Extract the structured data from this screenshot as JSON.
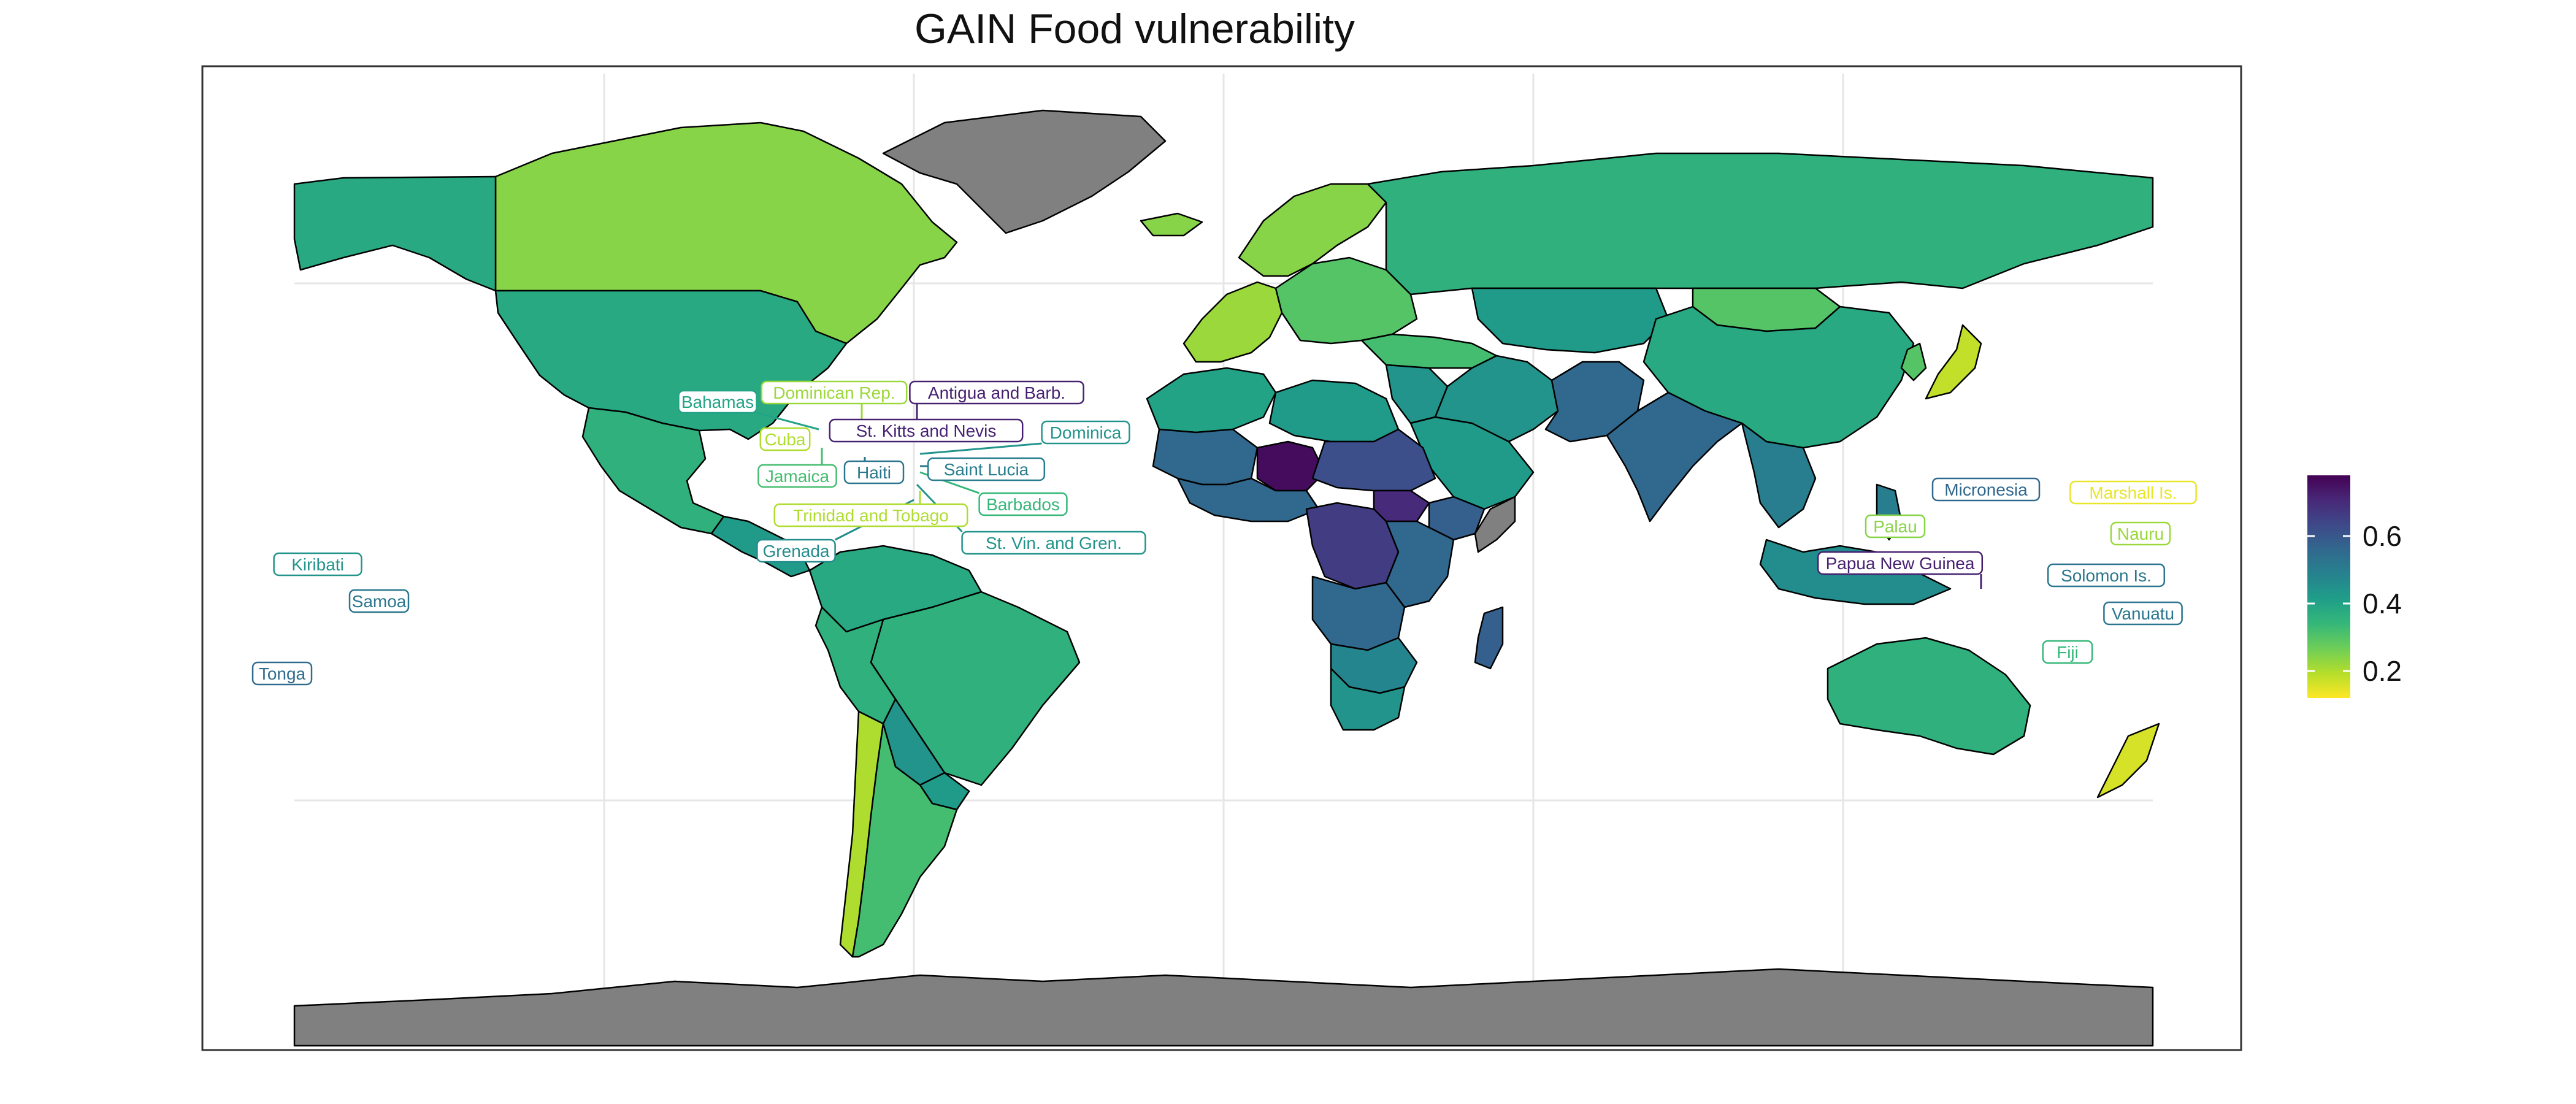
{
  "title": "GAIN Food vulnerability",
  "colors": {
    "background": "#ffffff",
    "ocean": "#ffffff",
    "frame": "#333333",
    "grid": "#e6e6e6",
    "no_data": "#808080",
    "border": "#000000"
  },
  "chart_data": {
    "type": "choropleth",
    "title": "GAIN Food vulnerability",
    "projection": "equirectangular",
    "legend": {
      "placement": "right",
      "min": 0.12,
      "max": 0.78,
      "ticks": [
        {
          "value": 0.6,
          "label": "0.6"
        },
        {
          "value": 0.4,
          "label": "0.4"
        },
        {
          "value": 0.2,
          "label": "0.2"
        }
      ],
      "palette": [
        "#fde725",
        "#b5de2b",
        "#6ece58",
        "#35b779",
        "#1f9e89",
        "#26828e",
        "#31688e",
        "#3e4989",
        "#482878",
        "#440154"
      ]
    },
    "regions": [
      {
        "name": "Canada",
        "value": 0.24
      },
      {
        "name": "Alaska",
        "value": 0.38
      },
      {
        "name": "United States",
        "value": 0.38
      },
      {
        "name": "Mexico",
        "value": 0.36
      },
      {
        "name": "Greenland",
        "value": null
      },
      {
        "name": "Central America",
        "value": 0.42
      },
      {
        "name": "Colombia / Venezuela",
        "value": 0.38
      },
      {
        "name": "Brazil",
        "value": 0.36
      },
      {
        "name": "Peru / Andes",
        "value": 0.36
      },
      {
        "name": "Bolivia",
        "value": 0.44
      },
      {
        "name": "Paraguay",
        "value": 0.42
      },
      {
        "name": "Chile",
        "value": 0.2
      },
      {
        "name": "Argentina",
        "value": 0.32
      },
      {
        "name": "Western Europe",
        "value": 0.22
      },
      {
        "name": "Scandinavia",
        "value": 0.24
      },
      {
        "name": "Iceland",
        "value": 0.24
      },
      {
        "name": "Eastern Europe",
        "value": 0.3
      },
      {
        "name": "Russia",
        "value": 0.36
      },
      {
        "name": "Kazakhstan",
        "value": 0.42
      },
      {
        "name": "Mongolia",
        "value": 0.3
      },
      {
        "name": "China",
        "value": 0.38
      },
      {
        "name": "Japan",
        "value": 0.18
      },
      {
        "name": "Korea",
        "value": 0.3
      },
      {
        "name": "Turkey / Caucasus",
        "value": 0.32
      },
      {
        "name": "Middle East",
        "value": 0.44
      },
      {
        "name": "Arabian Peninsula",
        "value": 0.42
      },
      {
        "name": "Iran",
        "value": 0.44
      },
      {
        "name": "Afghanistan / Pakistan",
        "value": 0.56
      },
      {
        "name": "India",
        "value": 0.56
      },
      {
        "name": "Mainland Southeast Asia",
        "value": 0.5
      },
      {
        "name": "Indonesia / Malaysia",
        "value": 0.46
      },
      {
        "name": "Philippines",
        "value": 0.5
      },
      {
        "name": "Australia",
        "value": 0.36
      },
      {
        "name": "New Zealand",
        "value": 0.16
      },
      {
        "name": "Maghreb",
        "value": 0.4
      },
      {
        "name": "Libya / Egypt",
        "value": 0.42
      },
      {
        "name": "Sahel West",
        "value": 0.56
      },
      {
        "name": "Niger",
        "value": 0.76
      },
      {
        "name": "Chad / Sudan",
        "value": 0.62
      },
      {
        "name": "South Sudan",
        "value": 0.7
      },
      {
        "name": "Somalia",
        "value": null
      },
      {
        "name": "Ethiopia",
        "value": 0.58
      },
      {
        "name": "West Africa",
        "value": 0.56
      },
      {
        "name": "Congo Basin",
        "value": 0.66
      },
      {
        "name": "East Africa",
        "value": 0.56
      },
      {
        "name": "Angola / Zambia",
        "value": 0.56
      },
      {
        "name": "Madagascar",
        "value": 0.58
      },
      {
        "name": "Southern Africa",
        "value": 0.48
      },
      {
        "name": "South Africa",
        "value": 0.44
      },
      {
        "name": "Antarctica",
        "value": null
      }
    ],
    "labels": [
      {
        "name": "Bahamas",
        "value": 0.4
      },
      {
        "name": "Dominican Rep.",
        "value": 0.22
      },
      {
        "name": "Antigua and Barb.",
        "value": 0.72
      },
      {
        "name": "St. Kitts and Nevis",
        "value": 0.72
      },
      {
        "name": "Dominica",
        "value": 0.44
      },
      {
        "name": "Cuba",
        "value": 0.2
      },
      {
        "name": "Haiti",
        "value": 0.52
      },
      {
        "name": "Jamaica",
        "value": 0.32
      },
      {
        "name": "Saint Lucia",
        "value": 0.5
      },
      {
        "name": "Barbados",
        "value": 0.34
      },
      {
        "name": "Trinidad and Tobago",
        "value": 0.2
      },
      {
        "name": "St. Vin. and Gren.",
        "value": 0.44
      },
      {
        "name": "Grenada",
        "value": 0.46
      },
      {
        "name": "Kiribati",
        "value": 0.44
      },
      {
        "name": "Samoa",
        "value": 0.52
      },
      {
        "name": "Tonga",
        "value": 0.55
      },
      {
        "name": "Micronesia",
        "value": 0.56
      },
      {
        "name": "Marshall Is.",
        "value": 0.14
      },
      {
        "name": "Palau",
        "value": 0.24
      },
      {
        "name": "Nauru",
        "value": 0.22
      },
      {
        "name": "Papua New Guinea",
        "value": 0.72
      },
      {
        "name": "Solomon Is.",
        "value": 0.52
      },
      {
        "name": "Vanuatu",
        "value": 0.52
      },
      {
        "name": "Fiji",
        "value": 0.34
      }
    ]
  }
}
